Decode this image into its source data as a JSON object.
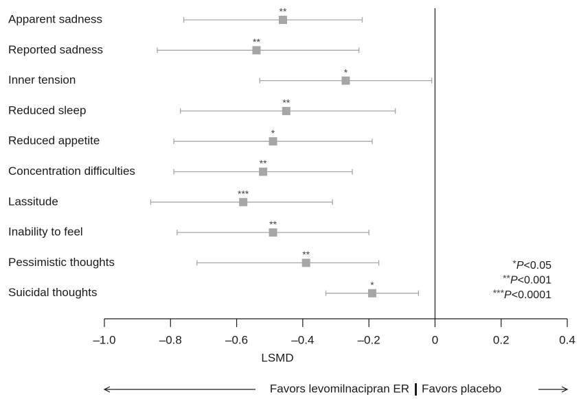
{
  "chart_data": {
    "type": "forest",
    "categories": [
      "Apparent sadness",
      "Reported sadness",
      "Inner tension",
      "Reduced sleep",
      "Reduced appetite",
      "Concentration difficulties",
      "Lassitude",
      "Inability to feel",
      "Pessimistic thoughts",
      "Suicidal thoughts"
    ],
    "values": [
      -0.46,
      -0.54,
      -0.27,
      -0.45,
      -0.49,
      -0.52,
      -0.58,
      -0.49,
      -0.39,
      -0.19
    ],
    "lower": [
      -0.76,
      -0.84,
      -0.53,
      -0.77,
      -0.79,
      -0.79,
      -0.86,
      -0.78,
      -0.72,
      -0.33
    ],
    "upper": [
      -0.22,
      -0.23,
      -0.01,
      -0.12,
      -0.19,
      -0.25,
      -0.31,
      -0.2,
      -0.17,
      -0.05
    ],
    "significance": [
      "**",
      "**",
      "*",
      "**",
      "*",
      "**",
      "***",
      "**",
      "**",
      "*"
    ],
    "color": "#a6a6a6",
    "xlim": [
      -1,
      0.4
    ],
    "xticks": [
      {
        "value": -1,
        "label": "–1.0"
      },
      {
        "value": -0.8,
        "label": "–0.8"
      },
      {
        "value": -0.6,
        "label": "–0.6"
      },
      {
        "value": -0.4,
        "label": "–0.4"
      },
      {
        "value": -0.2,
        "label": "–0.2"
      },
      0,
      0.2,
      0.4
    ],
    "xlabel": "LSMD",
    "footnotes": [
      {
        "stars": "*",
        "p": "P",
        "threshold": "<0.05"
      },
      {
        "stars": "**",
        "p": "P",
        "threshold": "<0.001"
      },
      {
        "stars": "***",
        "p": "P",
        "threshold": "<0.0001"
      }
    ],
    "favors_left": "Favors levomilnacipran ER",
    "favors_right": "Favors placebo"
  }
}
